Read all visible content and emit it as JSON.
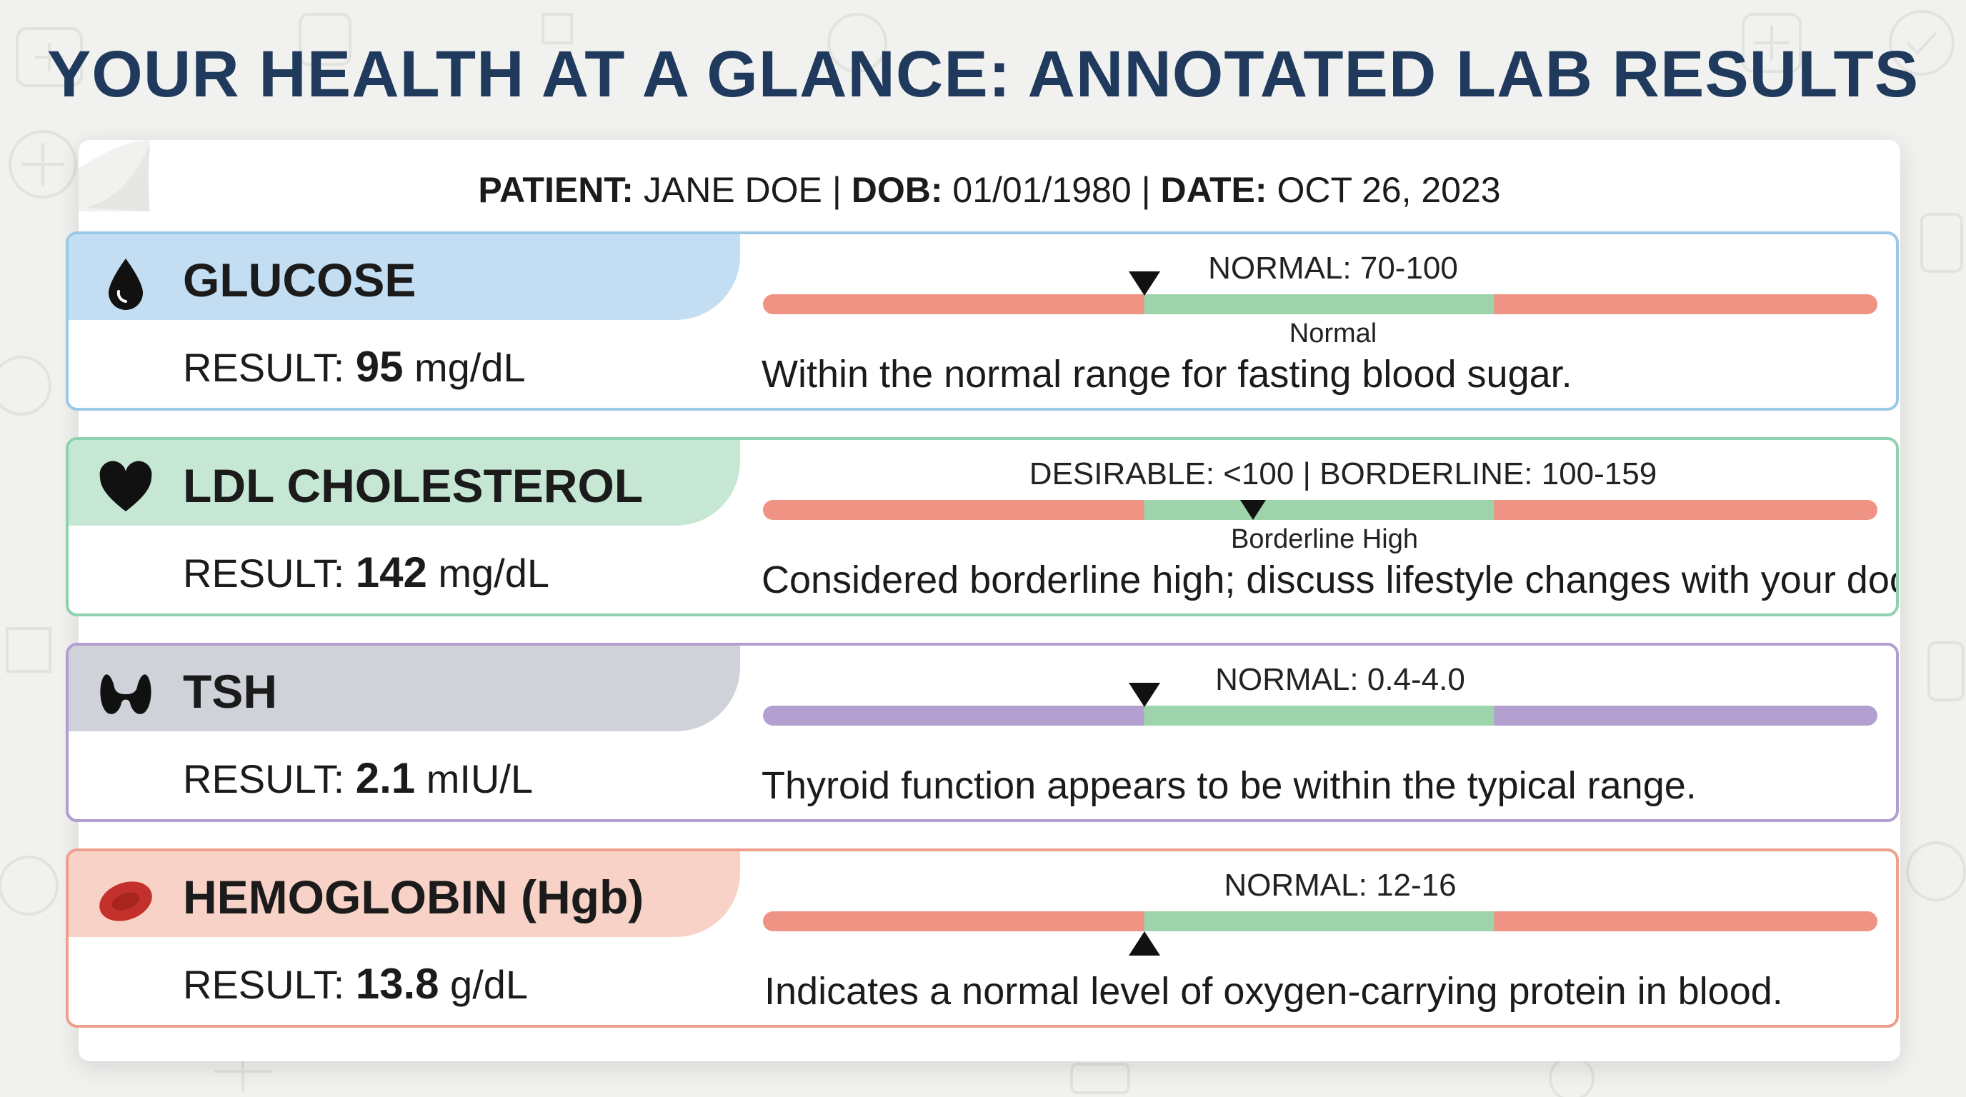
{
  "title": "YOUR HEALTH AT A GLANCE: ANNOTATED LAB RESULTS",
  "patient": {
    "patient_label": "PATIENT:",
    "patient_value": "JANE DOE",
    "dob_label": "DOB:",
    "dob_value": "01/01/1980",
    "date_label": "DATE:",
    "date_value": "OCT 26, 2023",
    "separator": "|"
  },
  "tests": [
    {
      "name": "GLUCOSE",
      "icon": "blood-drop-icon",
      "result_label": "RESULT:",
      "value": "95",
      "unit": "mg/dL",
      "range_text": "NORMAL: 70-100",
      "marker_position_fraction": 0.342,
      "marker_direction": "down-above",
      "status_label": "Normal",
      "note": "Within the normal range for fasting blood sugar.",
      "colors": {
        "border": "#9cc8e8",
        "header": "#c3def2",
        "bar_outer": "#ef9485",
        "bar_normal": "#9ed4ab"
      }
    },
    {
      "name": "LDL CHOLESTEROL",
      "icon": "heart-icon",
      "result_label": "RESULT:",
      "value": "142",
      "unit": "mg/dL",
      "range_text": "DESIRABLE: <100 | BORDERLINE: 100-159",
      "marker_position_fraction": 0.44,
      "marker_direction": "down-on",
      "status_label": "Borderline High",
      "note": "Considered borderline high; discuss lifestyle changes with your doctor.",
      "colors": {
        "border": "#8fd0ad",
        "header": "#c6e7d4",
        "bar_outer": "#ef9485",
        "bar_normal": "#9ed4ab"
      }
    },
    {
      "name": "TSH",
      "icon": "thyroid-icon",
      "result_label": "RESULT:",
      "value": "2.1",
      "unit": "mIU/L",
      "range_text": "NORMAL: 0.4-4.0",
      "marker_position_fraction": 0.342,
      "marker_direction": "down-above",
      "status_label": "",
      "note": "Thyroid function appears to be within  the typical range.",
      "colors": {
        "border": "#b19ed1",
        "header": "#cfd2d8",
        "bar_outer": "#b4a0d0",
        "bar_normal": "#9ed4ab"
      }
    },
    {
      "name": "HEMOGLOBIN (Hgb)",
      "icon": "red-blood-cell-icon",
      "result_label": "RESULT:",
      "value": "13.8",
      "unit": "g/dL",
      "range_text": "NORMAL: 12-16",
      "marker_position_fraction": 0.342,
      "marker_direction": "up-below",
      "status_label": "",
      "note": "Indicates a normal level of oxygen-carrying protein in blood.",
      "colors": {
        "border": "#ef9d8c",
        "header": "#f8d2c6",
        "bar_outer": "#ef9485",
        "bar_normal": "#9ed4ab"
      }
    }
  ]
}
